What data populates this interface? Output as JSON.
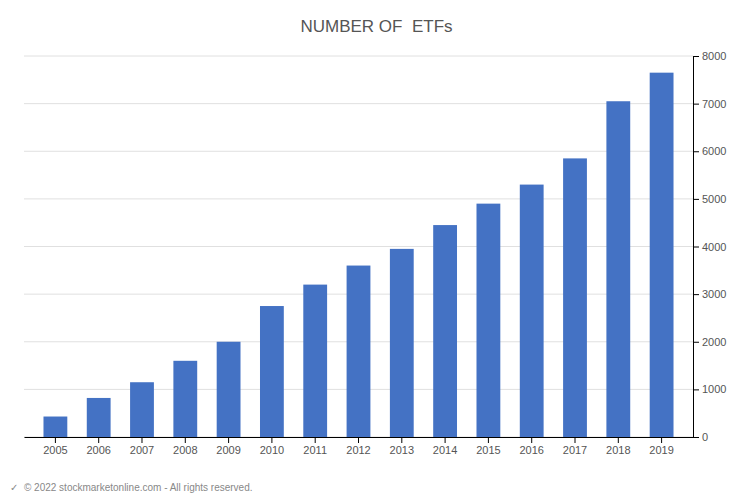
{
  "chart_data": {
    "type": "bar",
    "title": "NUMBER OF  ETFs",
    "categories": [
      "2005",
      "2006",
      "2007",
      "2008",
      "2009",
      "2010",
      "2011",
      "2012",
      "2013",
      "2014",
      "2015",
      "2016",
      "2017",
      "2018",
      "2019"
    ],
    "values": [
      430,
      820,
      1150,
      1600,
      2000,
      2750,
      3200,
      3600,
      3950,
      4450,
      4900,
      5300,
      5850,
      7050,
      7650
    ],
    "color": "#4472C4",
    "ylim": [
      0,
      8000
    ],
    "yticks": [
      0,
      1000,
      2000,
      3000,
      4000,
      5000,
      6000,
      7000,
      8000
    ],
    "grid": true,
    "annotations": [
      "✓  © 2022 stockmarketonline.com - All rights reserved."
    ]
  }
}
